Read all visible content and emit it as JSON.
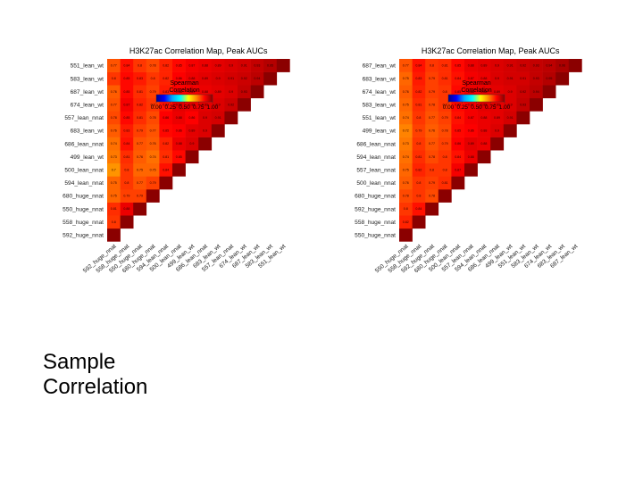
{
  "slide": {
    "title_line1": "Sample",
    "title_line2": "Correlation"
  },
  "chart_data": [
    {
      "type": "heatmap",
      "title": "H3K27ac Correlation Map, Peak AUCs",
      "legend": {
        "title_line1": "Spearman",
        "title_line2": "Correlation",
        "ticks": [
          "0.00",
          "0.25",
          "0.50",
          "0.75",
          "1.00"
        ],
        "placement": "top-left"
      },
      "colorscale": [
        "#00008b",
        "#0000ff",
        "#00aaff",
        "#00ffff",
        "#ffff00",
        "#ff8800",
        "#ff0000",
        "#8b0000"
      ],
      "labels": [
        "592_huge_nnat",
        "558_huge_nnat",
        "550_huge_nnat",
        "680_huge_nnat",
        "594_lean_nnat",
        "500_lean_nnat",
        "499_lean_wt",
        "686_lean_nnat",
        "683_lean_wt",
        "557_lean_nnat",
        "674_lean_wt",
        "687_lean_wt",
        "583_lean_wt",
        "551_lean_wt"
      ],
      "rows": [
        [
          1.0
        ],
        [
          0.8,
          1.0
        ],
        [
          0.81,
          0.88,
          1.0
        ],
        [
          0.75,
          0.79,
          0.79,
          1.0
        ],
        [
          0.75,
          0.8,
          0.77,
          0.79,
          1.0
        ],
        [
          0.7,
          0.8,
          0.75,
          0.75,
          0.84,
          1.0
        ],
        [
          0.73,
          0.81,
          0.76,
          0.74,
          0.81,
          0.85,
          1.0
        ],
        [
          0.74,
          0.84,
          0.77,
          0.76,
          0.82,
          0.88,
          0.9,
          1.0
        ],
        [
          0.76,
          0.83,
          0.79,
          0.77,
          0.85,
          0.86,
          0.89,
          0.9,
          1.0
        ],
        [
          0.78,
          0.85,
          0.81,
          0.78,
          0.86,
          0.88,
          0.86,
          0.9,
          0.91,
          1.0
        ],
        [
          0.77,
          0.87,
          0.82,
          0.8,
          0.84,
          0.89,
          0.88,
          0.89,
          0.9,
          0.92,
          1.0
        ],
        [
          0.76,
          0.85,
          0.81,
          0.79,
          0.83,
          0.86,
          0.87,
          0.88,
          0.89,
          0.9,
          0.93,
          1.0
        ],
        [
          0.8,
          0.85,
          0.83,
          0.8,
          0.82,
          0.86,
          0.88,
          0.89,
          0.9,
          0.91,
          0.92,
          0.94,
          1.0
        ],
        [
          0.77,
          0.84,
          0.8,
          0.78,
          0.82,
          0.85,
          0.87,
          0.88,
          0.89,
          0.9,
          0.91,
          0.93,
          0.95,
          1.0
        ]
      ]
    },
    {
      "type": "heatmap",
      "title": "H3K27ac Correlation Map, Peak AUCs",
      "legend": {
        "title_line1": "Spearman",
        "title_line2": "Correlation",
        "ticks": [
          "0.00",
          "0.25",
          "0.50",
          "0.75",
          "1.00"
        ],
        "placement": "top-left"
      },
      "colorscale": [
        "#00008b",
        "#0000ff",
        "#00aaff",
        "#00ffff",
        "#ffff00",
        "#ff8800",
        "#ff0000",
        "#8b0000"
      ],
      "labels": [
        "550_huge_nnat",
        "558_huge_nnat",
        "592_huge_nnat",
        "680_huge_nnat",
        "500_lean_nnat",
        "557_lean_nnat",
        "594_lean_nnat",
        "686_lean_nnat",
        "499_lean_wt",
        "551_lean_wt",
        "583_lean_wt",
        "674_lean_wt",
        "683_lean_wt",
        "687_lean_wt"
      ],
      "rows": [
        [
          1.0
        ],
        [
          0.82,
          1.0
        ],
        [
          0.8,
          0.84,
          1.0
        ],
        [
          0.78,
          0.8,
          0.78,
          1.0
        ],
        [
          0.76,
          0.8,
          0.79,
          0.81,
          1.0
        ],
        [
          0.75,
          0.82,
          0.8,
          0.8,
          0.87,
          1.0
        ],
        [
          0.74,
          0.81,
          0.78,
          0.8,
          0.84,
          0.88,
          1.0
        ],
        [
          0.73,
          0.8,
          0.77,
          0.79,
          0.86,
          0.89,
          0.88,
          1.0
        ],
        [
          0.72,
          0.79,
          0.76,
          0.78,
          0.85,
          0.86,
          0.88,
          0.9,
          1.0
        ],
        [
          0.74,
          0.8,
          0.77,
          0.79,
          0.84,
          0.87,
          0.88,
          0.89,
          0.91,
          1.0
        ],
        [
          0.75,
          0.81,
          0.78,
          0.8,
          0.85,
          0.87,
          0.89,
          0.89,
          0.9,
          0.93,
          1.0
        ],
        [
          0.76,
          0.82,
          0.79,
          0.8,
          0.85,
          0.88,
          0.88,
          0.89,
          0.9,
          0.92,
          0.94,
          1.0
        ],
        [
          0.75,
          0.83,
          0.79,
          0.81,
          0.84,
          0.87,
          0.88,
          0.9,
          0.91,
          0.91,
          0.93,
          0.95,
          1.0
        ],
        [
          0.77,
          0.84,
          0.8,
          0.81,
          0.85,
          0.88,
          0.89,
          0.9,
          0.91,
          0.92,
          0.93,
          0.94,
          0.96,
          1.0
        ]
      ]
    }
  ]
}
